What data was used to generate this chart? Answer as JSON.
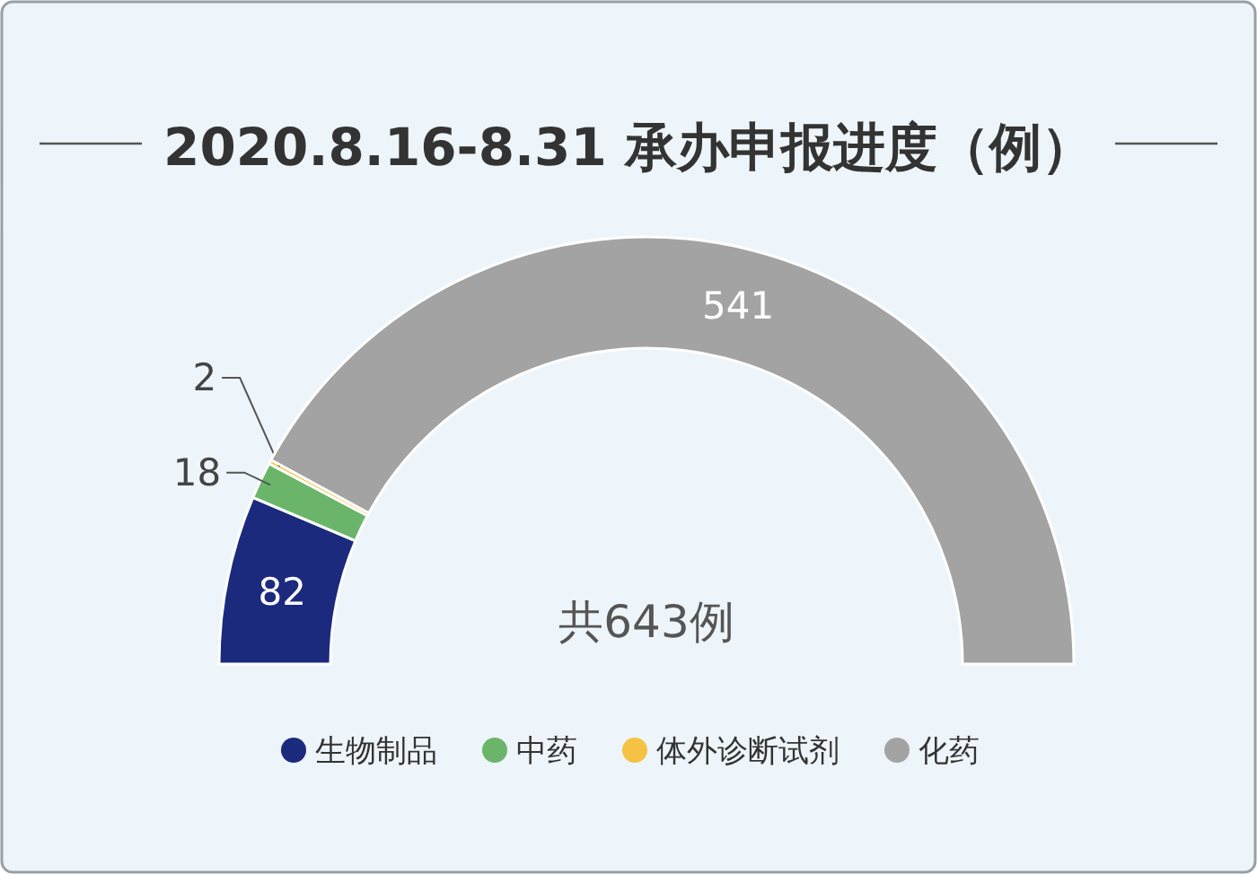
{
  "chart_data": {
    "type": "donut",
    "title": "2020.8.16-8.31 承办申报进度（例）",
    "categories": [
      "生物制品",
      "中药",
      "体外诊断试剂",
      "化药"
    ],
    "values": [
      82,
      18,
      2,
      541
    ],
    "colors": [
      "#1c2a7e",
      "#6bb56b",
      "#f6c244",
      "#a3a3a3"
    ],
    "data_labels": true,
    "legend": "bottom",
    "annotations": [
      "共643例"
    ]
  }
}
